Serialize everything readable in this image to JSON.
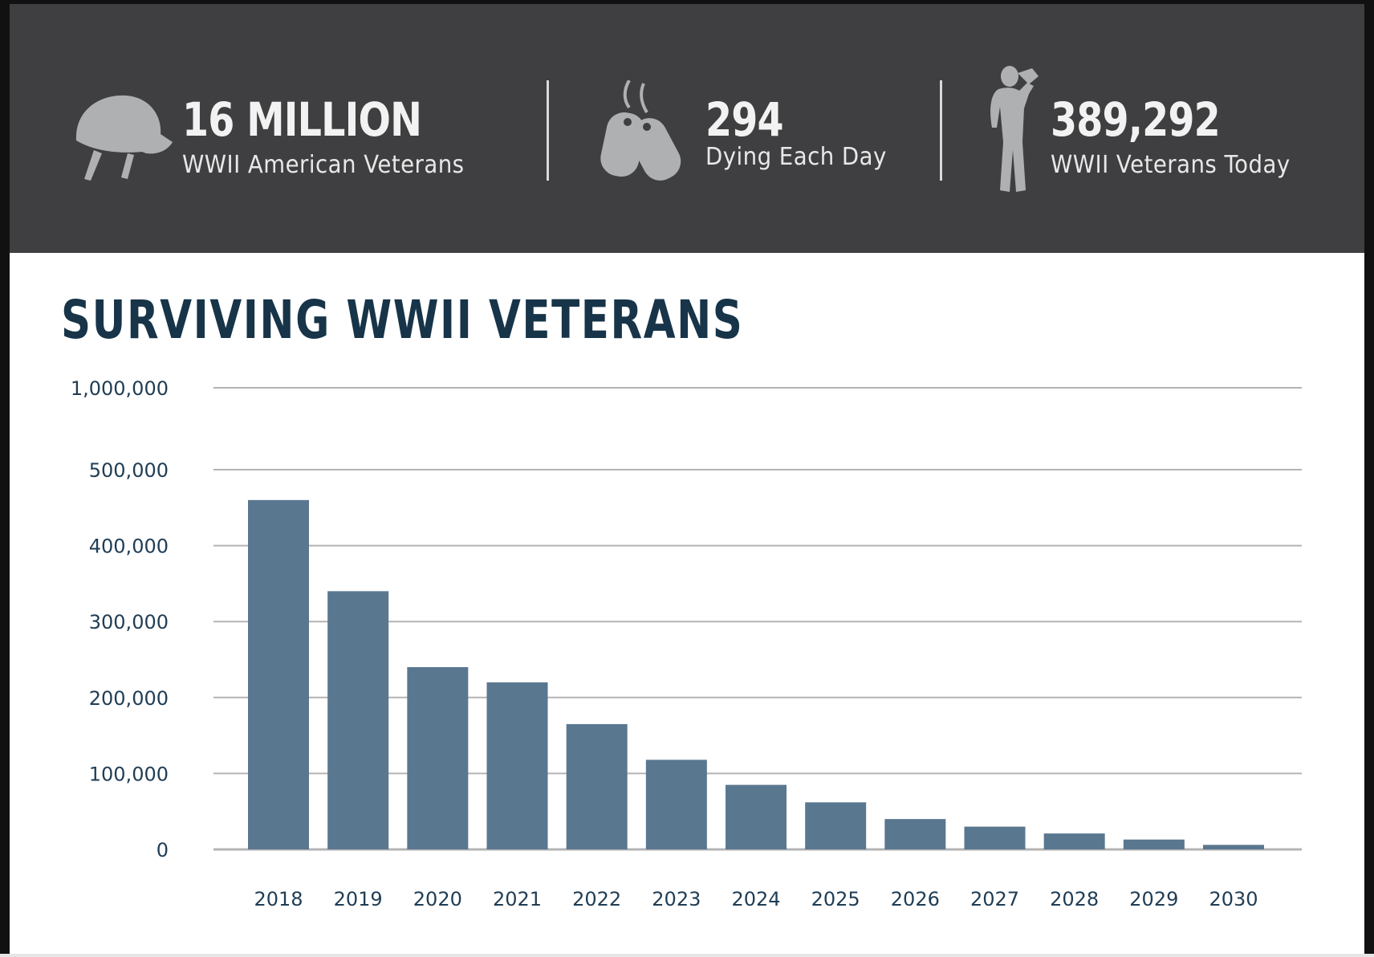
{
  "stats": [
    {
      "icon": "helmet-icon",
      "value": "16 MILLION",
      "label": "WWII American Veterans"
    },
    {
      "icon": "dog-tags-icon",
      "value": "294",
      "label": "Dying Each Day"
    },
    {
      "icon": "saluting-soldier-icon",
      "value": "389,292",
      "label": "WWII Veterans Today"
    }
  ],
  "colors": {
    "banner": "#3f3f41",
    "icon": "#aeb0b2",
    "bar": "#5a7790",
    "title": "#173449",
    "grid": "#b4b4b4"
  },
  "chart_data": {
    "type": "bar",
    "title": "SURVIVING WWII VETERANS",
    "xlabel": "",
    "ylabel": "",
    "categories": [
      "2018",
      "2019",
      "2020",
      "2021",
      "2022",
      "2023",
      "2024",
      "2025",
      "2026",
      "2027",
      "2028",
      "2029",
      "2030"
    ],
    "values": [
      460000,
      340000,
      240000,
      220000,
      165000,
      118000,
      85000,
      62000,
      40000,
      30000,
      21000,
      13000,
      6000
    ],
    "y_ticks": [
      "0",
      "100,000",
      "200,000",
      "300,000",
      "400,000",
      "500,000",
      "1,000,000"
    ],
    "y_tick_values": [
      0,
      100000,
      200000,
      300000,
      400000,
      500000,
      1000000
    ],
    "y_axis_break": "500,000 to 1,000,000 compressed",
    "grid": true,
    "legend": "none"
  }
}
